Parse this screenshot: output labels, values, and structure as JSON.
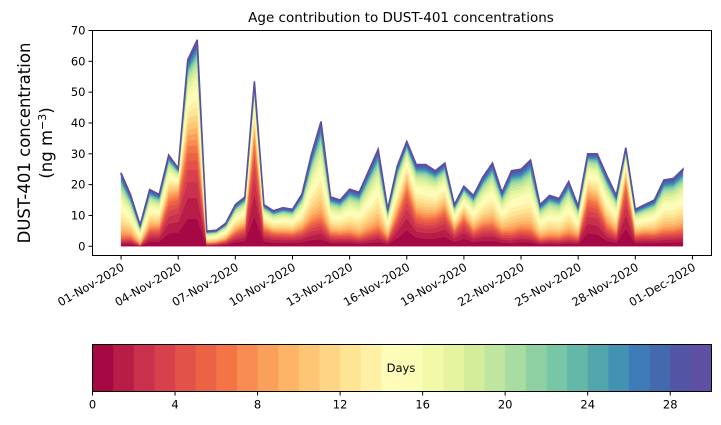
{
  "chart_data": {
    "type": "area",
    "stacked": true,
    "title": "Age contribution to DUST-401 concentrations",
    "ylabel_line1": "DUST-401 concentration",
    "ylabel_line2": "(ng m",
    "ylabel_sup": "−3",
    "ylabel_close": ")",
    "ylim": [
      -3,
      70
    ],
    "yticks": [
      0,
      10,
      20,
      30,
      40,
      50,
      60,
      70
    ],
    "xlim_days": [
      -1.5,
      31
    ],
    "xticks_days": [
      0,
      3,
      6,
      9,
      12,
      15,
      18,
      21,
      24,
      27,
      30
    ],
    "xtick_labels": [
      "01-Nov-2020",
      "04-Nov-2020",
      "07-Nov-2020",
      "10-Nov-2020",
      "13-Nov-2020",
      "16-Nov-2020",
      "19-Nov-2020",
      "22-Nov-2020",
      "25-Nov-2020",
      "28-Nov-2020",
      "01-Dec-2020"
    ],
    "time_step_days": 0.5,
    "total": [
      23.8,
      16.7,
      6.9,
      18.4,
      16.8,
      29.6,
      25.3,
      60.5,
      67,
      4.9,
      5.2,
      7.5,
      13.5,
      16,
      53.5,
      13.5,
      11.5,
      12.5,
      12,
      17,
      30,
      40.5,
      16,
      15,
      18.5,
      17.5,
      24.5,
      31.5,
      12,
      26,
      34,
      26.5,
      26.5,
      24.5,
      27,
      13.5,
      19.5,
      16.5,
      22.5,
      27,
      17.5,
      24.5,
      25,
      28,
      13.5,
      16.5,
      15.5,
      21,
      13,
      30,
      30,
      23,
      16.5,
      32,
      12,
      13.5,
      15,
      21.5,
      22,
      25
    ],
    "young_fraction": [
      0.12,
      0.2,
      0.05,
      0.35,
      0.4,
      0.6,
      0.75,
      0.63,
      0.57,
      0.2,
      0.25,
      0.3,
      0.4,
      0.45,
      0.75,
      0.5,
      0.45,
      0.4,
      0.4,
      0.35,
      0.3,
      0.25,
      0.3,
      0.3,
      0.25,
      0.2,
      0.2,
      0.2,
      0.25,
      0.45,
      0.65,
      0.45,
      0.4,
      0.45,
      0.5,
      0.45,
      0.55,
      0.35,
      0.35,
      0.3,
      0.3,
      0.2,
      0.25,
      0.2,
      0.2,
      0.2,
      0.2,
      0.2,
      0.25,
      0.6,
      0.55,
      0.35,
      0.3,
      0.75,
      0.35,
      0.35,
      0.3,
      0.25,
      0.25,
      0.25
    ],
    "colorbar": {
      "label": "Days",
      "vmin": 0,
      "vmax": 30,
      "ticks": [
        0,
        4,
        8,
        12,
        16,
        20,
        24,
        28
      ],
      "colors": [
        "#a50844",
        "#b81d48",
        "#c9314c",
        "#d7414e",
        "#e25249",
        "#ec6245",
        "#f47446",
        "#f88c51",
        "#fba05b",
        "#fdb466",
        "#fdc675",
        "#fed585",
        "#fee593",
        "#fff0a6",
        "#fffbb9",
        "#fbfdb6",
        "#f2f9a9",
        "#e5f49e",
        "#d4ed9b",
        "#bfe5a0",
        "#a8dca2",
        "#90d1a4",
        "#77c6a5",
        "#63b8a7",
        "#52a5ab",
        "#4391b3",
        "#3d7cb8",
        "#4569ad",
        "#5255a4",
        "#5e4fa2"
      ]
    }
  }
}
